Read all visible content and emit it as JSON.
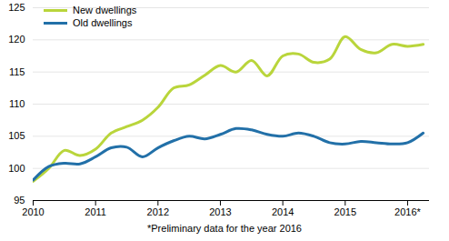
{
  "chart_data": {
    "type": "line",
    "caption": "*Preliminary data for the year 2016",
    "x": [
      2010,
      2010.25,
      2010.5,
      2010.75,
      2011,
      2011.25,
      2011.5,
      2011.75,
      2012,
      2012.25,
      2012.5,
      2012.75,
      2013,
      2013.25,
      2013.5,
      2013.75,
      2014,
      2014.25,
      2014.5,
      2014.75,
      2015,
      2015.25,
      2015.5,
      2015.75,
      2016,
      2016.25
    ],
    "series": [
      {
        "name": "New dwellings",
        "color": "#b9d53b",
        "values": [
          98,
          100,
          102.8,
          102,
          103,
          105.5,
          106.5,
          107.5,
          109.5,
          112.5,
          113,
          114.5,
          116,
          115,
          116.8,
          114.4,
          117.5,
          117.8,
          116.5,
          117,
          120.5,
          118.5,
          118,
          119.3,
          119,
          119.3
        ]
      },
      {
        "name": "Old dwellings",
        "color": "#2270a8",
        "values": [
          98.2,
          100.3,
          100.8,
          100.7,
          101.8,
          103.2,
          103.3,
          101.8,
          103.2,
          104.3,
          105,
          104.6,
          105.3,
          106.2,
          106,
          105.3,
          105,
          105.5,
          105,
          104,
          103.8,
          104.2,
          104,
          103.8,
          104,
          105.5
        ]
      }
    ],
    "xlim": [
      2010,
      2016.35
    ],
    "xticks": [
      2010,
      2011,
      2012,
      2013,
      2014,
      2015,
      {
        "value": 2016,
        "label": "2016*"
      }
    ],
    "ylim": [
      95,
      125
    ],
    "yticks": [
      95,
      100,
      105,
      110,
      115,
      120,
      125
    ],
    "grid": true,
    "legend": "top-left"
  }
}
